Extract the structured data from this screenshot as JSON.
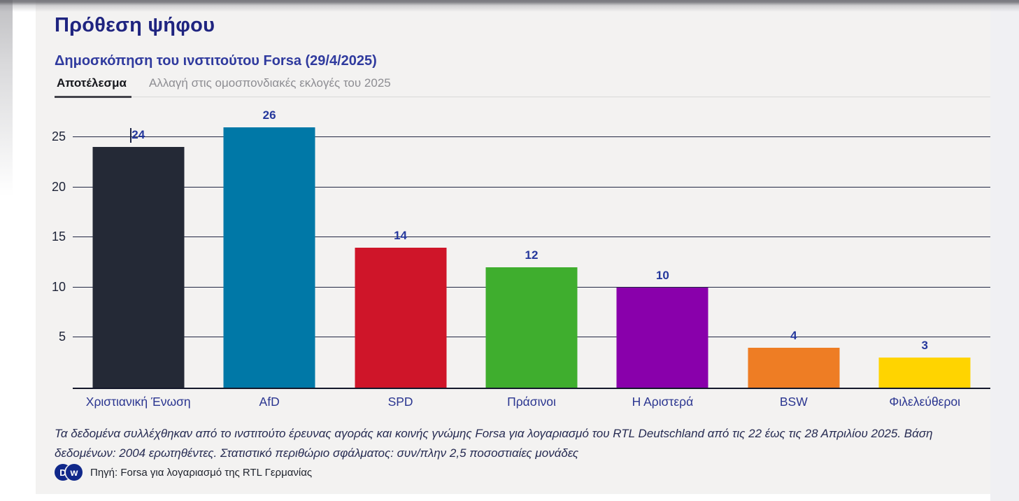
{
  "header": {
    "title": "Πρόθεση ψήφου",
    "subtitle": "Δημοσκόπηση του ινστιτούτου Forsa (29/4/2025)"
  },
  "tabs": [
    {
      "label": "Αποτέλεσμα",
      "active": true
    },
    {
      "label": "Αλλαγή στις ομοσπονδιακές εκλογές του 2025",
      "active": false
    }
  ],
  "chart_data": {
    "type": "bar",
    "title": "Πρόθεση ψήφου",
    "subtitle": "Δημοσκόπηση του ινστιτούτου Forsa (29/4/2025)",
    "categories": [
      "Χριστιανική Ένωση",
      "AfD",
      "SPD",
      "Πράσινοι",
      "Η Αριστερά",
      "BSW",
      "Φιλελεύθεροι"
    ],
    "values": [
      24,
      26,
      14,
      12,
      10,
      4,
      3
    ],
    "bar_colors": [
      "#242936",
      "#0078a7",
      "#cf1529",
      "#3fae2e",
      "#8900ab",
      "#ee7d24",
      "#ffd400"
    ],
    "value_label_color": "#24379c",
    "y_ticks": [
      5,
      10,
      15,
      20,
      25
    ],
    "ylim": [
      0,
      27.8
    ],
    "grid": true,
    "legend": "none",
    "value_labels_shown": true,
    "unit": "%"
  },
  "footnote": "Τα δεδομένα συλλέχθηκαν από το ινστιτούτο έρευνας αγοράς και κοινής γνώμης Forsa για λογαριασμό του RTL Deutschland από τις 22 έως τις 28 Απριλίου 2025. Βάση δεδομένων: 2004 ερωτηθέντες. Στατιστικό περιθώριο σφάλματος: συν/πλην 2,5 ποσοστιαίες μονάδες",
  "source": {
    "logo_d": "D",
    "logo_w": "w",
    "text": "Πηγή: Forsa για λογαριασμό της RTL Γερμανίας"
  },
  "colors": {
    "card_bg": "#f3f2f1",
    "title": "#1f2480",
    "subtitle": "#2f3a9e",
    "gridline": "#222844",
    "baseline": "#14182b",
    "tick_label": "#1d2337",
    "category_label": "#2a3590",
    "active_tab_underline": "#43434b",
    "inactive_tab": "#8d8d92",
    "dw_logo": "#10288a"
  }
}
